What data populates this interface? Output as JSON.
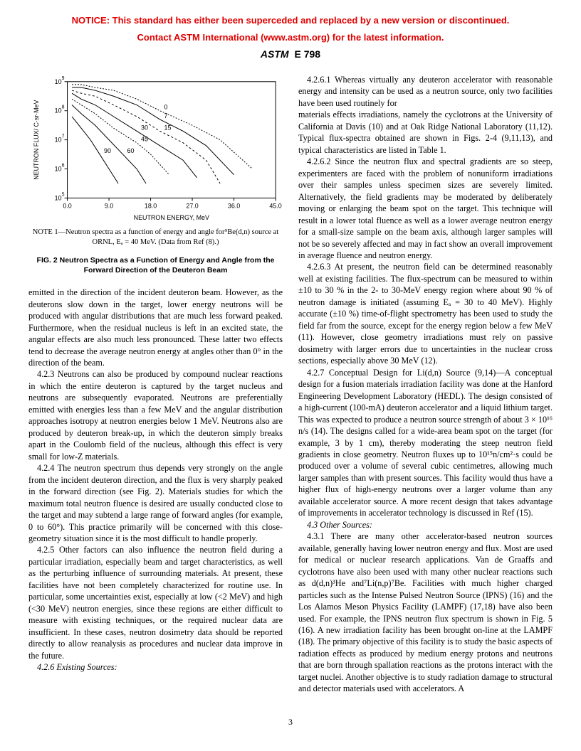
{
  "notice": {
    "line1": "NOTICE: This standard has either been superceded and replaced by a new version or discontinued.",
    "line2": "Contact ASTM International (www.astm.org) for the latest information."
  },
  "header": {
    "logo_text": "ASTM",
    "standard": "E 798"
  },
  "figure": {
    "type": "line",
    "xlabel": "NEUTRON ENERGY, MeV",
    "ylabel": "NEUTRON FLUX/ C·sr·MeV",
    "xlim": [
      0,
      45
    ],
    "xticks": [
      0.0,
      9.0,
      18.0,
      27.0,
      36.0,
      45.0
    ],
    "ylim_exp": [
      5,
      9
    ],
    "yticks_exp": [
      5,
      6,
      7,
      8,
      9
    ],
    "yscale": "log",
    "grid_color": "#999999",
    "line_color": "#000000",
    "background_color": "#ffffff",
    "axis_fontsize": 9,
    "label_fontsize": 9,
    "curves": [
      {
        "label": "0",
        "dash": "2,2",
        "points": [
          [
            1,
            8.9
          ],
          [
            3,
            8.9
          ],
          [
            6,
            8.8
          ],
          [
            10,
            8.7
          ],
          [
            15,
            8.4
          ],
          [
            20,
            8.0
          ],
          [
            27,
            7.5
          ],
          [
            33,
            7.0
          ],
          [
            40,
            6.0
          ]
        ]
      },
      {
        "label": "7",
        "dash": "none",
        "points": [
          [
            1,
            8.8
          ],
          [
            3,
            8.8
          ],
          [
            6,
            8.7
          ],
          [
            10,
            8.5
          ],
          [
            15,
            8.2
          ],
          [
            20,
            7.7
          ],
          [
            25,
            7.3
          ],
          [
            30,
            6.8
          ],
          [
            36,
            5.8
          ]
        ]
      },
      {
        "label": "15",
        "dash": "3,3",
        "points": [
          [
            1,
            8.7
          ],
          [
            3,
            8.6
          ],
          [
            6,
            8.5
          ],
          [
            10,
            8.2
          ],
          [
            15,
            7.8
          ],
          [
            20,
            7.3
          ],
          [
            25,
            6.9
          ],
          [
            30,
            6.3
          ],
          [
            33,
            5.5
          ]
        ]
      },
      {
        "label": "30",
        "dash": "none",
        "points": [
          [
            1,
            8.6
          ],
          [
            3,
            8.4
          ],
          [
            6,
            8.2
          ],
          [
            10,
            7.8
          ],
          [
            15,
            7.3
          ],
          [
            20,
            6.8
          ],
          [
            25,
            6.3
          ],
          [
            28,
            5.7
          ]
        ]
      },
      {
        "label": "45",
        "dash": "2,2",
        "points": [
          [
            1,
            8.4
          ],
          [
            3,
            8.2
          ],
          [
            6,
            7.9
          ],
          [
            10,
            7.4
          ],
          [
            15,
            6.9
          ],
          [
            18,
            6.5
          ],
          [
            22,
            5.8
          ]
        ]
      },
      {
        "label": "60",
        "dash": "none",
        "points": [
          [
            1,
            8.2
          ],
          [
            3,
            7.9
          ],
          [
            6,
            7.5
          ],
          [
            9,
            7.0
          ],
          [
            12,
            6.5
          ],
          [
            15,
            6.0
          ],
          [
            17,
            5.5
          ]
        ]
      },
      {
        "label": "90",
        "dash": "none",
        "points": [
          [
            1,
            7.8
          ],
          [
            3,
            7.4
          ],
          [
            5,
            7.0
          ],
          [
            7,
            6.5
          ],
          [
            9,
            6.0
          ],
          [
            11,
            5.5
          ]
        ]
      }
    ],
    "note": "NOTE 1—Neutron spectra as a function of energy and angle for⁹Be(d,n) source at ORNL, Eₐ = 40 MeV. (Data from Ref (8).)",
    "title": "FIG. 2 Neutron Spectra as a Function of Energy and Angle from the Forward Direction of the Deuteron Beam"
  },
  "left": {
    "p0": "emitted in the direction of the incident deuteron beam. However, as the deuterons slow down in the target, lower energy neutrons will be produced with angular distributions that are much less forward peaked. Furthermore, when the residual nucleus is left in an excited state, the angular effects are also much less pronounced. These latter two effects tend to decrease the average neutron energy at angles other than 0° in the direction of the beam.",
    "p423": "4.2.3 Neutrons can also be produced by compound nuclear reactions in which the entire deuteron is captured by the target nucleus and neutrons are subsequently evaporated. Neutrons are preferentially emitted with energies less than a few MeV and the angular distribution approaches isotropy at neutron energies below 1 MeV. Neutrons also are produced by deuteron break-up, in which the deuteron simply breaks apart in the Coulomb field of the nucleus, although this effect is very small for low-Z materials.",
    "p424": "4.2.4 The neutron spectrum thus depends very strongly on the angle from the incident deuteron direction, and the flux is very sharply peaked in the forward direction (see Fig. 2). Materials studies for which the maximum total neutron fluence is desired are usually conducted close to the target and may subtend a large range of forward angles (for example, 0 to 60°). This practice primarily will be concerned with this close-geometry situation since it is the most difficult to handle properly.",
    "p425": "4.2.5 Other factors can also influence the neutron field during a particular irradiation, especially beam and target characteristics, as well as the perturbing influence of surrounding materials. At present, these facilities have not been completely characterized for routine use. In particular, some uncertainties exist, especially at low (<2 MeV) and high (<30 MeV) neutron energies, since these regions are either difficult to measure with existing techniques, or the required nuclear data are insufficient. In these cases, neutron dosimetry data should be reported directly to allow reanalysis as procedures and nuclear data improve in the future.",
    "p426": "4.2.6 Existing Sources:",
    "p4261": "4.2.6.1 Whereas virtually any deuteron accelerator with reasonable energy and intensity can be used as a neutron source, only two facilities have been used routinely for"
  },
  "right": {
    "p4261c": "materials effects irradiations, namely the cyclotrons at the University of California at Davis (10) and at Oak Ridge National Laboratory (11,12). Typical flux-spectra obtained are shown in Figs. 2-4 (9,11,13), and typical characteristics are listed in Table 1.",
    "p4262": "4.2.6.2 Since the neutron flux and spectral gradients are so steep, experimenters are faced with the problem of nonuniform irradiations over their samples unless specimen sizes are severely limited. Alternatively, the field gradients may be moderated by deliberately moving or enlarging the beam spot on the target. This technique will result in a lower total fluence as well as a lower average neutron energy for a small-size sample on the beam axis, although larger samples will not be so severely affected and may in fact show an overall improvement in average fluence and neutron energy.",
    "p4263": "4.2.6.3 At present, the neutron field can be determined reasonably well at existing facilities. The flux-spectrum can be measured to within ±10 to 30 % in the 2- to 30-MeV energy region where about 90 % of neutron damage is initiated (assuming Eₐ = 30 to 40 MeV). Highly accurate (±10 %) time-of-flight spectrometry has been used to study the field far from the source, except for the energy region below a few MeV (11). However, close geometry irradiations must rely on passive dosimetry with larger errors due to uncertainties in the nuclear cross sections, especially above 30 MeV (12).",
    "p427": "4.2.7 Conceptual Design for Li(d,n) Source (9,14)—A conceptual design for a fusion materials irradiation facility was done at the Hanford Engineering Development Laboratory (HEDL). The design consisted of a high-current (100-mA) deuteron accelerator and a liquid lithium target. This was expected to produce a neutron source strength of about 3 × 10¹⁶ n/s (14). The designs called for a wide-area beam spot on the target (for example, 3 by 1 cm), thereby moderating the steep neutron field gradients in close geometry. Neutron fluxes up to 10¹⁵n/cm²·s could be produced over a volume of several cubic centimetres, allowing much larger samples than with present sources. This facility would thus have a higher flux of high-energy neutrons over a larger volume than any available accelerator source. A more recent design that takes advantage of improvements in accelerator technology is discussed in Ref (15).",
    "p43": "4.3 Other Sources:",
    "p431": "4.3.1 There are many other accelerator-based neutron sources available, generally having lower neutron energy and flux. Most are used for medical or nuclear research applications. Van de Graaffs and cyclotrons have also been used with many other nuclear reactions such as d(d,n)³He and⁷Li(n,p)⁷Be. Facilities with much higher charged particles such as the Intense Pulsed Neutron Source (IPNS) (16) and the Los Alamos Meson Physics Facility (LAMPF) (17,18) have also been used. For example, the IPNS neutron flux spectrum is shown in Fig. 5 (16). A new irradiation facility has been brought on-line at the LAMPF (18). The primary objective of this facility is to study the basic aspects of radiation effects as produced by medium energy protons and neutrons that are born through spallation reactions as the protons interact with the target nuclei. Another objective is to study radiation damage to structural and detector materials used with accelerators. A"
  },
  "pagenum": "3"
}
